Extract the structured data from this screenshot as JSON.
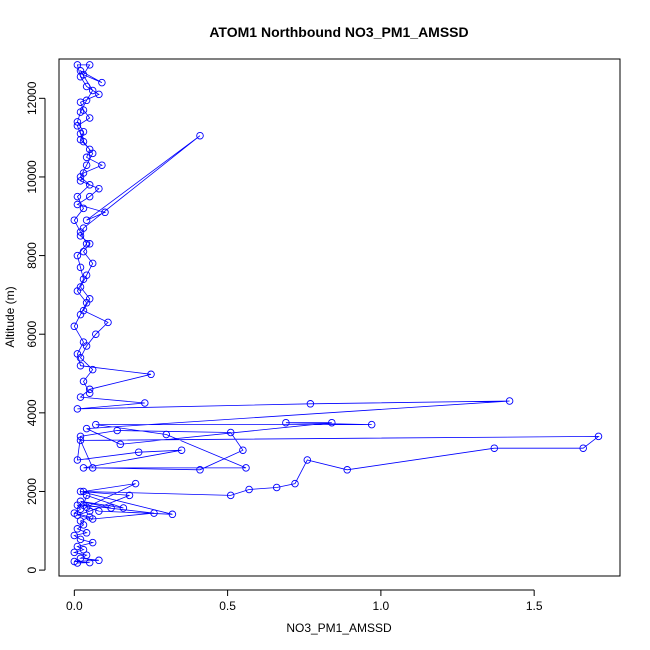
{
  "chart_data": {
    "type": "line",
    "title": "ATOM1 Northbound NO3_PM1_AMSSD",
    "xlabel": "NO3_PM1_AMSSD",
    "ylabel": "Altitude (m)",
    "xlim": [
      -0.05,
      1.78
    ],
    "ylim": [
      -150,
      13000
    ],
    "x_ticks": [
      0,
      0.5,
      1,
      1.5
    ],
    "x_tick_labels": [
      "0.0",
      "0.5",
      "1.0",
      "1.5"
    ],
    "y_ticks": [
      0,
      2000,
      4000,
      6000,
      8000,
      10000,
      12000
    ],
    "y_tick_labels": [
      "0",
      "2000",
      "4000",
      "6000",
      "8000",
      "10000",
      "12000"
    ],
    "grid": false,
    "legend": "none",
    "series_color": "#0000ff",
    "marker": "open-circle",
    "series": [
      {
        "x": [
          0.01,
          0.05,
          0.0,
          0.08,
          0.02,
          0.04,
          0.0,
          0.03,
          0.01,
          0.06,
          0.02,
          0.0,
          0.04,
          0.01,
          0.03,
          0.02,
          0.05,
          0.0,
          0.02,
          0.01,
          0.12,
          0.02,
          0.16,
          0.04,
          0.03,
          0.26,
          0.06,
          0.01,
          0.05,
          0.18,
          0.02,
          0.32,
          0.08,
          0.04,
          0.2,
          0.03,
          0.51,
          0.57,
          0.66,
          0.72,
          0.76,
          0.89,
          1.37,
          1.66,
          1.71,
          0.02,
          0.06,
          0.41,
          0.55,
          0.51,
          0.14,
          0.02,
          0.01,
          0.21,
          0.35,
          0.03,
          0.56,
          0.3,
          0.07,
          0.97,
          0.69,
          0.84,
          0.15,
          0.04,
          1.42,
          0.77,
          0.01,
          0.23,
          0.02,
          0.05,
          0.25,
          0.02,
          0.01,
          0.03,
          0.0,
          0.02,
          0.04,
          0.01,
          0.03,
          0.02,
          0.01,
          0.04,
          0.02,
          0.0,
          0.03,
          0.01,
          0.05,
          0.02,
          0.04,
          0.06,
          0.03,
          0.02,
          0.01,
          0.05,
          0.03,
          0.02,
          0.08,
          0.04,
          0.02,
          0.01,
          0.05,
          0.03,
          0.09,
          0.02,
          0.06,
          0.04,
          0.02,
          0.01,
          0.03,
          0.02,
          0.05,
          0.04,
          0.09,
          0.03,
          0.02,
          0.08,
          0.05,
          0.01,
          0.1,
          0.04,
          0.41,
          0.03,
          0.02,
          0.05,
          0.03,
          0.06,
          0.04,
          0.02,
          0.05,
          0.03,
          0.11,
          0.07,
          0.04,
          0.02,
          0.06,
          0.03,
          0.05
        ],
        "y": [
          180,
          190,
          220,
          250,
          300,
          380,
          450,
          520,
          600,
          700,
          780,
          880,
          950,
          1050,
          1150,
          1250,
          1350,
          1450,
          1550,
          1650,
          1580,
          1750,
          1580,
          1900,
          1650,
          1450,
          1300,
          1400,
          1500,
          1900,
          2000,
          1420,
          1500,
          1600,
          2200,
          2000,
          1900,
          2050,
          2100,
          2200,
          2800,
          2550,
          3100,
          3100,
          3400,
          3300,
          2600,
          2550,
          3050,
          3500,
          3550,
          3400,
          2800,
          3000,
          3050,
          2600,
          2600,
          3450,
          3700,
          3700,
          3750,
          3750,
          3200,
          3600,
          4300,
          4230,
          4100,
          4250,
          4400,
          4600,
          4980,
          5200,
          5500,
          5800,
          6200,
          6500,
          6800,
          7100,
          7400,
          7700,
          8000,
          8300,
          8600,
          8900,
          9200,
          9500,
          9800,
          10000,
          10300,
          10600,
          10900,
          11100,
          11300,
          11500,
          11700,
          11900,
          12100,
          12300,
          12550,
          12850,
          12850,
          12600,
          12400,
          12700,
          12200,
          11950,
          11650,
          11400,
          11150,
          10950,
          10700,
          10500,
          10300,
          10100,
          9900,
          9700,
          9500,
          9300,
          9100,
          8900,
          11050,
          8700,
          8500,
          8300,
          8100,
          7800,
          7500,
          7200,
          6900,
          6600,
          6300,
          6000,
          5700,
          5400,
          5100,
          4800,
          4500
        ]
      }
    ]
  }
}
